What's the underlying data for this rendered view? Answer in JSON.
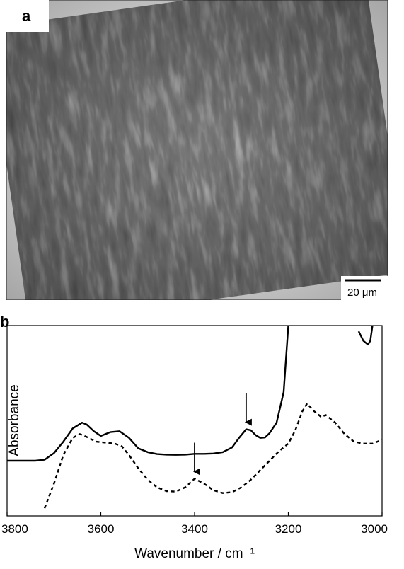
{
  "panel_a": {
    "label": "a",
    "scale_bar": {
      "label": "20 μm"
    }
  },
  "chart_data": {
    "type": "line",
    "panel_label": "b",
    "title": "",
    "xlabel": "Wavenumber / cm⁻¹",
    "ylabel": "Absorbance",
    "xlim": [
      3800,
      3000
    ],
    "x_reversed": true,
    "xticks": [
      3800,
      3600,
      3400,
      3200,
      3000
    ],
    "grid": false,
    "series": [
      {
        "style": "solid",
        "x": [
          3800,
          3740,
          3720,
          3700,
          3680,
          3660,
          3640,
          3630,
          3615,
          3600,
          3580,
          3560,
          3540,
          3520,
          3500,
          3480,
          3460,
          3440,
          3420,
          3400,
          3380,
          3360,
          3340,
          3320,
          3305,
          3290,
          3280,
          3270,
          3260,
          3250,
          3240,
          3225,
          3210,
          3200
        ],
        "y": [
          0.24,
          0.24,
          0.245,
          0.28,
          0.34,
          0.41,
          0.44,
          0.43,
          0.395,
          0.37,
          0.39,
          0.395,
          0.36,
          0.305,
          0.285,
          0.275,
          0.272,
          0.271,
          0.272,
          0.276,
          0.276,
          0.278,
          0.285,
          0.31,
          0.36,
          0.405,
          0.4,
          0.375,
          0.36,
          0.362,
          0.385,
          0.44,
          0.6,
          0.95
        ]
      },
      {
        "style": "solid",
        "x": [
          3050,
          3040,
          3030,
          3025,
          3020
        ],
        "y": [
          0.92,
          0.87,
          0.85,
          0.87,
          0.96
        ]
      },
      {
        "style": "dashed",
        "x": [
          3720,
          3700,
          3680,
          3660,
          3645,
          3630,
          3610,
          3590,
          3570,
          3555,
          3540,
          3520,
          3500,
          3480,
          3460,
          3440,
          3420,
          3400,
          3380,
          3360,
          3340,
          3320,
          3300,
          3280,
          3260,
          3240,
          3220,
          3200,
          3185,
          3170,
          3160,
          3145,
          3130,
          3120,
          3100,
          3080,
          3060,
          3040,
          3020,
          3000
        ],
        "y": [
          -0.01,
          0.12,
          0.27,
          0.36,
          0.38,
          0.365,
          0.34,
          0.335,
          0.33,
          0.315,
          0.27,
          0.2,
          0.14,
          0.1,
          0.08,
          0.078,
          0.1,
          0.145,
          0.12,
          0.085,
          0.07,
          0.075,
          0.1,
          0.14,
          0.19,
          0.24,
          0.29,
          0.33,
          0.4,
          0.5,
          0.54,
          0.5,
          0.47,
          0.48,
          0.44,
          0.38,
          0.34,
          0.33,
          0.33,
          0.35
        ]
      }
    ],
    "annotations": [
      {
        "type": "arrow",
        "x": 3290,
        "y": 0.405
      },
      {
        "type": "arrow",
        "x": 3400,
        "y": 0.145
      }
    ]
  }
}
